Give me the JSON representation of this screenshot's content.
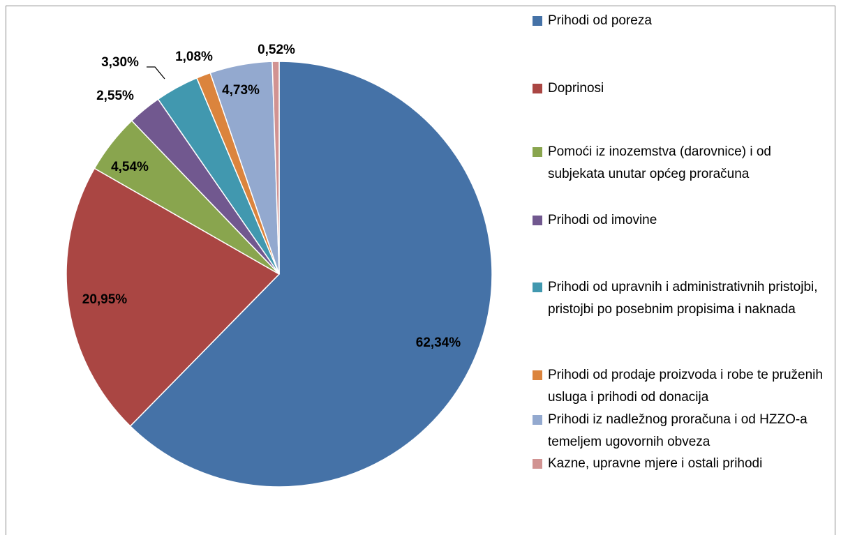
{
  "chart_data": {
    "type": "pie",
    "categories": [
      "Prihodi od poreza",
      "Doprinosi",
      "Pomoći iz inozemstva (darovnice) i od subjekata unutar općeg proračuna",
      "Prihodi od imovine",
      "Prihodi od upravnih i administrativnih pristojbi, pristojbi po posebnim propisima i naknada",
      "Prihodi od prodaje proizvoda i robe te pruženih usluga i prihodi od donacija",
      "Prihodi iz nadležnog proračuna i od HZZO-a temeljem ugovornih obveza",
      "Kazne, upravne mjere i ostali prihodi"
    ],
    "values": [
      62.34,
      20.95,
      4.54,
      2.55,
      3.3,
      1.08,
      4.73,
      0.52
    ],
    "value_labels": [
      "62,34%",
      "20,95%",
      "4,54%",
      "2,55%",
      "3,30%",
      "1,08%",
      "4,73%",
      "0,52%"
    ],
    "colors": [
      "#4572a7",
      "#aa4643",
      "#89a54e",
      "#71588f",
      "#4198af",
      "#db843d",
      "#93a9cf",
      "#d19392"
    ],
    "legend": "right"
  }
}
